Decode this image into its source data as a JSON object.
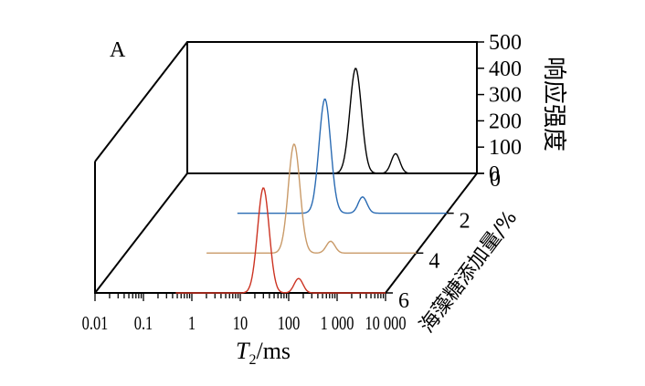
{
  "chart_data": {
    "type": "line",
    "panel_label": "A",
    "xlabel_main": "T",
    "xlabel_sub": "2",
    "xlabel_unit": "/ms",
    "ylabel": "响应强度",
    "zlabel": "海藻糖添加量/%",
    "x_ticks": [
      "0.01",
      "0.1",
      "1",
      "10",
      "100",
      "1 000",
      "10 000"
    ],
    "y_ticks": [
      "0",
      "100",
      "200",
      "300",
      "400",
      "500"
    ],
    "z_ticks": [
      "0",
      "2",
      "4",
      "6"
    ],
    "xlim": [
      0.01,
      10000
    ],
    "ylim": [
      0,
      500
    ],
    "x_scale": "log",
    "series": [
      {
        "name": "0",
        "color": "#000000",
        "peaks": [
          {
            "t2": 30,
            "amplitude": 400,
            "width": 0.12
          },
          {
            "t2": 200,
            "amplitude": 75,
            "width": 0.09
          }
        ]
      },
      {
        "name": "2",
        "color": "#2a6bb3",
        "peaks": [
          {
            "t2": 30,
            "amplitude": 435,
            "width": 0.12
          },
          {
            "t2": 180,
            "amplitude": 62,
            "width": 0.09
          }
        ]
      },
      {
        "name": "4",
        "color": "#c99a68",
        "peaks": [
          {
            "t2": 30,
            "amplitude": 415,
            "width": 0.12
          },
          {
            "t2": 170,
            "amplitude": 45,
            "width": 0.09
          }
        ]
      },
      {
        "name": "6",
        "color": "#cc3322",
        "peaks": [
          {
            "t2": 30,
            "amplitude": 400,
            "width": 0.12
          },
          {
            "t2": 160,
            "amplitude": 55,
            "width": 0.09
          }
        ]
      }
    ]
  }
}
